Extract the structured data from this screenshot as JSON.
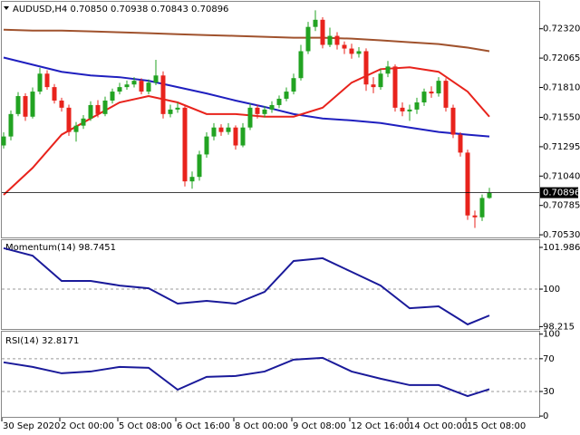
{
  "chart_data": [
    {
      "type": "candlestick",
      "title": "AUDUSD,H4 0.70850 0.70938 0.70843 0.70896",
      "categories": [
        "30 Sep 2020",
        null,
        null,
        null,
        null,
        null,
        null,
        null,
        "2 Oct 00:00",
        null,
        null,
        null,
        null,
        null,
        null,
        null,
        "5 Oct 08:00",
        null,
        null,
        null,
        null,
        null,
        null,
        null,
        "6 Oct 16:00",
        null,
        null,
        null,
        null,
        null,
        null,
        null,
        "8 Oct 00:00",
        null,
        null,
        null,
        null,
        null,
        null,
        null,
        "9 Oct 08:00",
        null,
        null,
        null,
        null,
        null,
        null,
        null,
        "12 Oct 16:00",
        null,
        null,
        null,
        null,
        null,
        null,
        null,
        "14 Oct 00:00",
        null,
        null,
        null,
        null,
        null,
        null,
        null,
        "15 Oct 08:00",
        null,
        null,
        null
      ],
      "open": [
        0.71306,
        0.71384,
        0.71579,
        0.71735,
        0.71556,
        0.71774,
        0.7193,
        0.71813,
        0.71696,
        0.71634,
        0.71423,
        0.71478,
        0.7154,
        0.71657,
        0.71579,
        0.71696,
        0.71774,
        0.71813,
        0.71836,
        0.71868,
        0.71774,
        0.71852,
        0.71914,
        0.71579,
        0.71618,
        0.71634,
        0.70994,
        0.71033,
        0.71228,
        0.71384,
        0.71462,
        0.71423,
        0.71462,
        0.71306,
        0.71462,
        0.71634,
        0.71579,
        0.71618,
        0.71657,
        0.71712,
        0.71774,
        0.71891,
        0.72125,
        0.72336,
        0.72398,
        0.7218,
        0.72258,
        0.7218,
        0.72148,
        0.72102,
        0.72125,
        0.71836,
        0.71813,
        0.7193,
        0.71992,
        0.71634,
        0.71602,
        0.71618,
        0.7168,
        0.71774,
        0.71758,
        0.71868,
        0.71634,
        0.714,
        0.71244,
        0.70698,
        0.70682,
        0.7085
      ],
      "high": [
        0.7142,
        0.7161,
        0.7177,
        0.7176,
        0.7181,
        0.7198,
        0.7196,
        0.7184,
        0.7172,
        0.7166,
        0.7151,
        0.7157,
        0.7169,
        0.717,
        0.7173,
        0.718,
        0.7185,
        0.7187,
        0.719,
        0.7189,
        0.7188,
        0.7205,
        0.7195,
        0.7166,
        0.7168,
        0.7166,
        0.7108,
        0.7126,
        0.7142,
        0.715,
        0.7149,
        0.715,
        0.7148,
        0.715,
        0.7167,
        0.7166,
        0.7165,
        0.7169,
        0.7174,
        0.7181,
        0.7193,
        0.7218,
        0.7238,
        0.7248,
        0.7242,
        0.7233,
        0.7229,
        0.7221,
        0.7219,
        0.7216,
        0.7215,
        0.719,
        0.7197,
        0.7204,
        0.7201,
        0.7168,
        0.7166,
        0.7172,
        0.718,
        0.7182,
        0.719,
        0.7189,
        0.7166,
        0.7142,
        0.7127,
        0.7074,
        0.7088,
        0.70938
      ],
      "low": [
        0.7128,
        0.7135,
        0.7156,
        0.7152,
        0.7154,
        0.7175,
        0.7179,
        0.7167,
        0.716,
        0.7139,
        0.7134,
        0.7145,
        0.7152,
        0.7155,
        0.7156,
        0.7167,
        0.7175,
        0.7179,
        0.7181,
        0.7175,
        0.7175,
        0.7183,
        0.7154,
        0.7155,
        0.7159,
        0.7095,
        0.7093,
        0.71,
        0.712,
        0.7135,
        0.7139,
        0.714,
        0.7127,
        0.7129,
        0.7144,
        0.7154,
        0.7155,
        0.7159,
        0.7163,
        0.7169,
        0.7175,
        0.7187,
        0.721,
        0.723,
        0.7215,
        0.7216,
        0.7214,
        0.721,
        0.7206,
        0.7207,
        0.7178,
        0.7176,
        0.7179,
        0.719,
        0.716,
        0.7156,
        0.7152,
        0.7158,
        0.7165,
        0.7172,
        0.7173,
        0.716,
        0.7137,
        0.7121,
        0.7066,
        0.7059,
        0.7065,
        0.70843
      ],
      "close": [
        0.71384,
        0.71579,
        0.71735,
        0.71556,
        0.71774,
        0.7193,
        0.71813,
        0.71696,
        0.71634,
        0.71423,
        0.71478,
        0.7154,
        0.71657,
        0.71579,
        0.71696,
        0.71774,
        0.71813,
        0.71836,
        0.71868,
        0.71774,
        0.71852,
        0.71914,
        0.71579,
        0.71618,
        0.71634,
        0.70994,
        0.71033,
        0.71228,
        0.71384,
        0.71462,
        0.71423,
        0.71462,
        0.71306,
        0.71462,
        0.71634,
        0.71579,
        0.71618,
        0.71657,
        0.71712,
        0.71774,
        0.71891,
        0.72125,
        0.72336,
        0.72398,
        0.7218,
        0.72258,
        0.7218,
        0.72148,
        0.72102,
        0.72125,
        0.71836,
        0.71813,
        0.7193,
        0.71992,
        0.71634,
        0.71602,
        0.71618,
        0.7168,
        0.71774,
        0.71758,
        0.71868,
        0.71634,
        0.714,
        0.71244,
        0.70698,
        0.70682,
        0.7085,
        0.70896
      ],
      "up_color": "#22a322",
      "down_color": "#e8231c",
      "ylim": [
        0.70507,
        0.72554
      ],
      "yticks": [
        {
          "value": 0.7232,
          "label": "0.72320"
        },
        {
          "value": 0.72065,
          "label": "0.72065"
        },
        {
          "value": 0.7181,
          "label": "0.71810"
        },
        {
          "value": 0.7155,
          "label": "0.71550"
        },
        {
          "value": 0.71295,
          "label": "0.71295"
        },
        {
          "value": 0.7104,
          "label": "0.71040"
        },
        {
          "value": 0.70785,
          "label": "0.70785"
        },
        {
          "value": 0.7053,
          "label": "0.70530"
        }
      ],
      "last_price": {
        "value": 0.70896,
        "label": "0.70896"
      },
      "series": [
        {
          "color": "#a0522d",
          "x": [
            0,
            4,
            8,
            12,
            16,
            20,
            24,
            28,
            32,
            36,
            40,
            44,
            48,
            52,
            56,
            60,
            64,
            67
          ],
          "values": [
            0.72312,
            0.72304,
            0.72304,
            0.72297,
            0.72289,
            0.72281,
            0.72273,
            0.72265,
            0.72258,
            0.7225,
            0.72242,
            0.72242,
            0.72234,
            0.72219,
            0.72203,
            0.72187,
            0.72156,
            0.72125
          ]
        },
        {
          "color": "#1f1fbf",
          "x": [
            0,
            4,
            8,
            12,
            16,
            20,
            24,
            28,
            32,
            36,
            40,
            44,
            48,
            52,
            56,
            60,
            64,
            67
          ],
          "values": [
            0.7207,
            0.72008,
            0.71946,
            0.71914,
            0.71899,
            0.71868,
            0.71813,
            0.71758,
            0.71696,
            0.71641,
            0.71579,
            0.7154,
            0.71524,
            0.71501,
            0.71462,
            0.71423,
            0.714,
            0.71384
          ]
        },
        {
          "color": "#e8231c",
          "x": [
            0,
            4,
            8,
            12,
            16,
            20,
            24,
            28,
            32,
            36,
            40,
            44,
            48,
            52,
            56,
            60,
            64,
            67
          ],
          "values": [
            0.70877,
            0.71111,
            0.714,
            0.7154,
            0.7168,
            0.71735,
            0.7168,
            0.71579,
            0.71579,
            0.71556,
            0.71556,
            0.71634,
            0.71852,
            0.71969,
            0.71985,
            0.71946,
            0.71774,
            0.71556
          ]
        }
      ]
    },
    {
      "type": "line",
      "title": "Momentum(14) 98.7451",
      "color": "#1a1a9a",
      "x": [
        0,
        4,
        8,
        12,
        16,
        20,
        24,
        28,
        32,
        36,
        40,
        44,
        48,
        52,
        56,
        60,
        64,
        67
      ],
      "values": [
        101.95,
        101.59,
        100.39,
        100.39,
        100.17,
        100.04,
        99.31,
        99.44,
        99.31,
        99.87,
        101.34,
        101.47,
        100.82,
        100.17,
        99.09,
        99.18,
        98.32,
        98.7451
      ],
      "ylim": [
        98.06,
        102.33
      ],
      "yticks": [
        101.9861,
        100,
        98.215
      ],
      "level_lines": [
        100
      ]
    },
    {
      "type": "line",
      "title": "RSI(14) 32.8171",
      "color": "#1a1a9a",
      "x": [
        0,
        4,
        8,
        12,
        16,
        20,
        24,
        28,
        32,
        36,
        40,
        44,
        48,
        52,
        56,
        60,
        64,
        67
      ],
      "values": [
        65.6,
        60,
        52.2,
        54.4,
        60,
        58.9,
        32.2,
        47.8,
        48.9,
        54.4,
        68.9,
        71.1,
        54.4,
        45.6,
        37.8,
        37.8,
        24.4,
        32.8171
      ],
      "ylim": [
        -1,
        103
      ],
      "yticks": [
        100,
        70,
        30,
        0
      ],
      "level_lines": [
        70,
        30
      ]
    }
  ]
}
